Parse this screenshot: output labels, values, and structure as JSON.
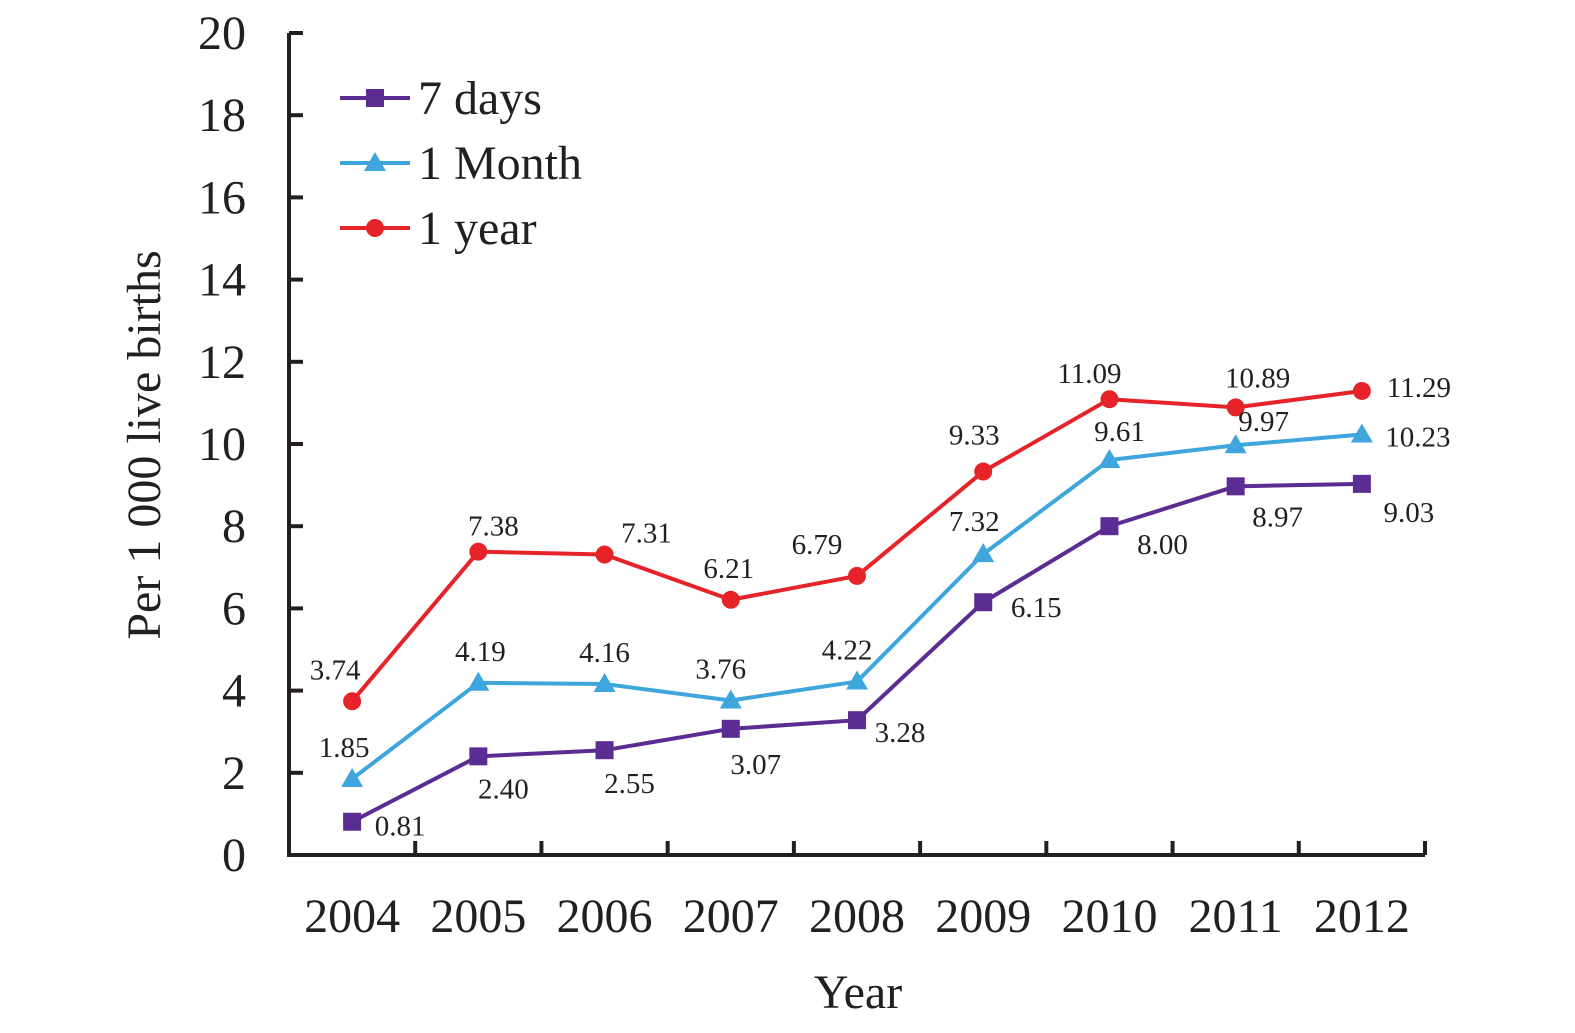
{
  "chart_data": {
    "type": "line",
    "categories": [
      "2004",
      "2005",
      "2006",
      "2007",
      "2008",
      "2009",
      "2010",
      "2011",
      "2012"
    ],
    "xlabel": "Year",
    "ylabel": "Per 1 000 live births",
    "ylim": [
      0,
      20
    ],
    "yticks": [
      "0",
      "2",
      "4",
      "6",
      "8",
      "10",
      "12",
      "14",
      "16",
      "18",
      "20"
    ],
    "grid": false,
    "legend_position": "top-left",
    "series": [
      {
        "name": "7 days",
        "color": "#5b2c91",
        "marker": "square",
        "values": [
          0.81,
          2.4,
          2.55,
          3.07,
          3.28,
          6.15,
          8.0,
          8.97,
          9.03
        ],
        "labels": [
          "0.81",
          "2.40",
          "2.55",
          "3.07",
          "3.28",
          "6.15",
          "8.00",
          "8.97",
          "9.03"
        ]
      },
      {
        "name": "1 Month",
        "color": "#3ea6dc",
        "marker": "triangle",
        "values": [
          1.85,
          4.19,
          4.16,
          3.76,
          4.22,
          7.32,
          9.61,
          9.97,
          10.23
        ],
        "labels": [
          "1.85",
          "4.19",
          "4.16",
          "3.76",
          "4.22",
          "7.32",
          "9.61",
          "9.97",
          "10.23"
        ]
      },
      {
        "name": "1 year",
        "color": "#e52329",
        "marker": "circle",
        "values": [
          3.74,
          7.38,
          7.31,
          6.21,
          6.79,
          9.33,
          11.09,
          10.89,
          11.29
        ],
        "labels": [
          "3.74",
          "7.38",
          "7.31",
          "6.21",
          "6.79",
          "9.33",
          "11.09",
          "10.89",
          "11.29"
        ]
      }
    ]
  }
}
